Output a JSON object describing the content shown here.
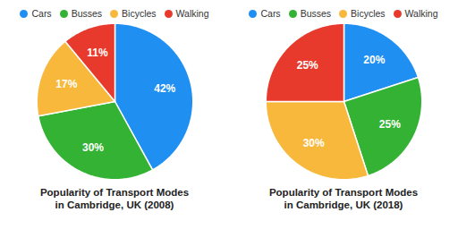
{
  "chart_data": [
    {
      "type": "pie",
      "title": "Popularity of Transport Modes\nin Cambridge, UK (2008)",
      "categories": [
        "Cars",
        "Busses",
        "Bicycles",
        "Walking"
      ],
      "values": [
        42,
        30,
        17,
        11
      ],
      "value_labels": [
        "42%",
        "30%",
        "17%",
        "11%"
      ],
      "colors": [
        "#1f8ff2",
        "#33b233",
        "#f7b83c",
        "#e83a2c"
      ],
      "data_labels": true,
      "legend": "top"
    },
    {
      "type": "pie",
      "title": "Popularity of Transport Modes\nin Cambridge, UK (2018)",
      "categories": [
        "Cars",
        "Busses",
        "Bicycles",
        "Walking"
      ],
      "values": [
        20,
        25,
        30,
        25
      ],
      "value_labels": [
        "20%",
        "25%",
        "30%",
        "25%"
      ],
      "colors": [
        "#1f8ff2",
        "#33b233",
        "#f7b83c",
        "#e83a2c"
      ],
      "data_labels": true,
      "legend": "top"
    }
  ]
}
